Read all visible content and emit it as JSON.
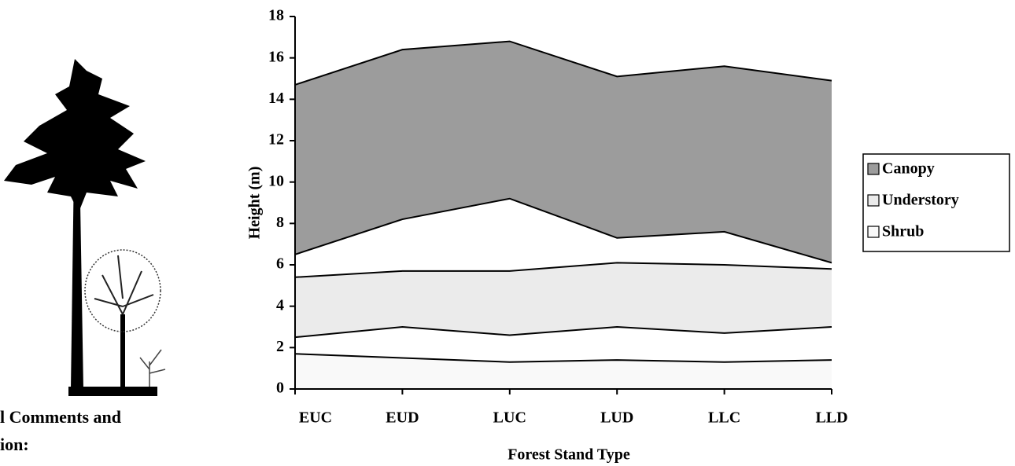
{
  "chart_data": {
    "type": "range-area",
    "x_label": "Forest Stand Type",
    "y_label": "Height (m)",
    "categories": [
      "EUC",
      "EUD",
      "LUC",
      "LUD",
      "LLC",
      "LLD"
    ],
    "series": [
      {
        "name": "Canopy",
        "color": "#9c9c9c",
        "low": [
          6.5,
          8.2,
          9.2,
          7.3,
          7.6,
          6.1
        ],
        "high": [
          14.7,
          16.4,
          16.8,
          15.1,
          15.6,
          14.9
        ]
      },
      {
        "name": "Understory",
        "color": "#ebebeb",
        "low": [
          2.5,
          3.0,
          2.6,
          3.0,
          2.7,
          3.0
        ],
        "high": [
          5.4,
          5.7,
          5.7,
          6.1,
          6.0,
          5.8
        ]
      },
      {
        "name": "Shrub",
        "color": "#f9f9f9",
        "low": [
          0,
          0,
          0,
          0,
          0,
          0
        ],
        "high": [
          1.7,
          1.5,
          1.3,
          1.4,
          1.3,
          1.4
        ]
      }
    ],
    "ylim": [
      0,
      18
    ],
    "yticks": [
      0,
      2,
      4,
      6,
      8,
      10,
      12,
      14,
      16,
      18
    ],
    "legend": "right"
  },
  "side_text": [
    "l Comments and",
    "ion:"
  ]
}
